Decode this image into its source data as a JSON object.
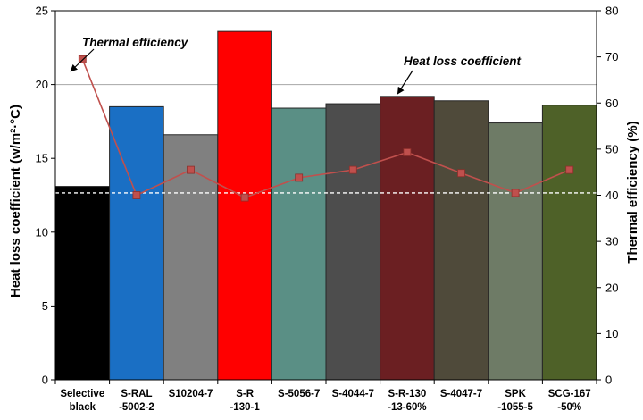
{
  "chart_data": {
    "type": "bar",
    "categories": [
      [
        "Selective",
        "black"
      ],
      [
        "S-RAL",
        "-5002-2"
      ],
      [
        "S10204-7"
      ],
      [
        "S-R",
        "-130-1"
      ],
      [
        "S-5056-7"
      ],
      [
        "S-4044-7"
      ],
      [
        "S-R-130",
        "-13-60%"
      ],
      [
        "S-4047-7"
      ],
      [
        "SPK",
        "-1055-5"
      ],
      [
        "SCG-167",
        "-50%"
      ]
    ],
    "series": [
      {
        "name": "Heat loss coefficient",
        "kind": "bar",
        "axis": "left",
        "values": [
          13.1,
          18.5,
          16.6,
          23.6,
          18.4,
          18.7,
          19.2,
          18.9,
          17.4,
          18.6
        ],
        "colors": [
          "#000000",
          "#1a6fc4",
          "#808080",
          "#ff0000",
          "#5a8f85",
          "#4d4d4d",
          "#6b1f22",
          "#4f4a3a",
          "#6e7b66",
          "#4e6128"
        ]
      },
      {
        "name": "Thermal efficiency",
        "kind": "line",
        "axis": "right",
        "values": [
          69.5,
          40.0,
          45.5,
          39.5,
          43.8,
          45.5,
          49.3,
          44.8,
          40.5,
          45.5
        ],
        "color": "#c0504d"
      }
    ],
    "ylabel": "Heat loss coefficient (w/m²·°C)",
    "ylabel_right": "Thermal efficiency (%)",
    "ylim": [
      0,
      25
    ],
    "ylim_right": [
      0,
      80
    ],
    "yticks": [
      "0",
      "5",
      "10",
      "15",
      "20",
      "25"
    ],
    "yticks_right": [
      "0",
      "10",
      "20",
      "30",
      "40",
      "50",
      "60",
      "70",
      "80"
    ],
    "gridlines": [
      20
    ],
    "reference_line": {
      "axis": "right",
      "value": 40.5,
      "style": "dashed",
      "color": "#ffffff"
    },
    "annotations": [
      {
        "text": "Thermal efficiency",
        "points_to": "Thermal efficiency"
      },
      {
        "text": "Heat loss coefficient",
        "points_to": "Heat loss coefficient"
      }
    ]
  }
}
